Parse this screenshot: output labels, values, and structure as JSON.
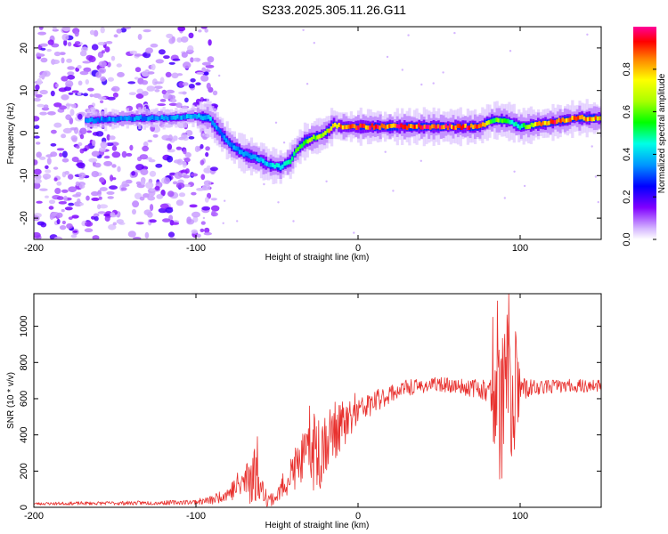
{
  "title": "S233.2025.305.11.26.G11",
  "chart_data": [
    {
      "type": "heatmap",
      "name": "spectrogram",
      "xlabel": "Height of straight line (km)",
      "ylabel": "Frequency (Hz)",
      "xlim": [
        -200,
        150
      ],
      "ylim": [
        -25,
        25
      ],
      "xticks": [
        -200,
        -100,
        0,
        100
      ],
      "yticks": [
        -20,
        -10,
        0,
        10,
        20
      ],
      "colorbar": {
        "label": "Normalized spectral amplitude",
        "range": [
          0,
          1
        ],
        "ticks": [
          "0.0",
          "0.2",
          "0.4",
          "0.6",
          "0.8"
        ],
        "colormap": "white-violet-blue-cyan-green-yellow-orange-red-magenta"
      },
      "noise_region_x": [
        -200,
        -100
      ],
      "ridge": {
        "x": [
          -165,
          -140,
          -115,
          -102,
          -92,
          -85,
          -78,
          -70,
          -62,
          -55,
          -48,
          -42,
          -38,
          -33,
          -27,
          -20,
          -15,
          -10,
          -5,
          0,
          20,
          40,
          60,
          75,
          82,
          90,
          95,
          100,
          110,
          120,
          135,
          150
        ],
        "freq": [
          3,
          3.5,
          3.5,
          4,
          3.5,
          0,
          -3,
          -5,
          -6,
          -7.5,
          -8,
          -6.5,
          -4,
          -2,
          -1,
          0,
          2,
          1.5,
          1.5,
          1.5,
          1.5,
          1.5,
          1.5,
          1.5,
          3,
          3,
          2.5,
          1.5,
          2,
          2.5,
          3.5,
          3.5
        ],
        "amplitude": [
          0.35,
          0.35,
          0.35,
          0.4,
          0.4,
          0.35,
          0.35,
          0.4,
          0.4,
          0.4,
          0.45,
          0.5,
          0.55,
          0.6,
          0.65,
          0.7,
          0.8,
          0.85,
          0.85,
          0.9,
          0.92,
          0.92,
          0.92,
          0.9,
          0.6,
          0.6,
          0.45,
          0.45,
          0.8,
          0.92,
          0.85,
          0.8
        ]
      }
    },
    {
      "type": "line",
      "name": "snr",
      "xlabel": "Height of straight line (km)",
      "ylabel": "SNR (10 * v/v)",
      "xlim": [
        -200,
        150
      ],
      "ylim": [
        0,
        1180
      ],
      "xticks": [
        -200,
        -100,
        0,
        100
      ],
      "yticks": [
        0,
        200,
        400,
        600,
        800,
        1000
      ],
      "color": "#e8312e",
      "envelope": {
        "x": [
          -200,
          -120,
          -100,
          -90,
          -80,
          -70,
          -65,
          -60,
          -55,
          -50,
          -45,
          -40,
          -35,
          -30,
          -25,
          -20,
          -15,
          -10,
          -5,
          0,
          10,
          20,
          30,
          40,
          50,
          60,
          70,
          75,
          80,
          85,
          90,
          95,
          100,
          110,
          120,
          130,
          140,
          150
        ],
        "y": [
          20,
          25,
          30,
          40,
          80,
          140,
          200,
          110,
          40,
          60,
          140,
          200,
          260,
          300,
          330,
          370,
          420,
          450,
          480,
          530,
          580,
          630,
          660,
          670,
          680,
          670,
          660,
          660,
          640,
          560,
          580,
          600,
          650,
          660,
          670,
          670,
          670,
          670
        ]
      },
      "amplitude": {
        "x": [
          -200,
          -120,
          -100,
          -80,
          -70,
          -65,
          -60,
          -50,
          -40,
          -30,
          -25,
          -20,
          -10,
          0,
          20,
          40,
          60,
          80,
          84,
          88,
          92,
          96,
          100,
          110,
          150
        ],
        "y": [
          8,
          12,
          14,
          40,
          120,
          200,
          60,
          40,
          120,
          150,
          300,
          180,
          140,
          80,
          50,
          40,
          40,
          60,
          250,
          450,
          520,
          520,
          80,
          40,
          35
        ]
      },
      "peaks": [
        {
          "x": -62,
          "y": 390
        },
        {
          "x": -30,
          "y": 560
        },
        {
          "x": -2,
          "y": 630
        },
        {
          "x": 83,
          "y": 1050
        },
        {
          "x": 86,
          "y": 1140
        },
        {
          "x": 93,
          "y": 1180
        },
        {
          "x": 97,
          "y": 970
        }
      ]
    }
  ]
}
